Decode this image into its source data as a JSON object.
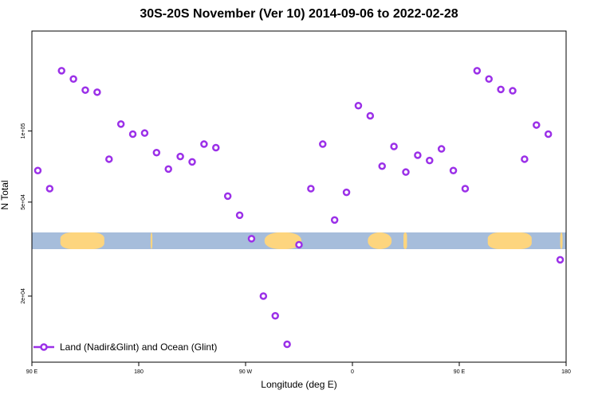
{
  "chart_data": {
    "type": "scatter",
    "title": "30S-20S November (Ver 10)   2014-09-06 to 2022-02-28",
    "xlabel": "Longitude (deg E)",
    "ylabel": "N Total",
    "y_scale": "log",
    "xlim": [
      90,
      540
    ],
    "ylim": [
      10500,
      265000
    ],
    "x_ticks": [
      {
        "value": 90,
        "label": "90 E"
      },
      {
        "value": 180,
        "label": "180"
      },
      {
        "value": 270,
        "label": "90 W"
      },
      {
        "value": 360,
        "label": "0"
      },
      {
        "value": 450,
        "label": "90 E"
      },
      {
        "value": 540,
        "label": "180"
      }
    ],
    "y_ticks": [
      {
        "value": 20000,
        "label": "2e+04"
      },
      {
        "value": 50000,
        "label": "5e+04"
      },
      {
        "value": 100000,
        "label": "1e+05"
      }
    ],
    "map_strip": {
      "ocean_color": "#a6bddb",
      "land_color": "#fdd57e"
    },
    "series": [
      {
        "name": "Land (Nadir&Glint) and Ocean (Glint)",
        "color": "#9b30e8",
        "marker": "open-circle",
        "x": [
          95,
          105,
          115,
          125,
          135,
          145,
          155,
          165,
          175,
          185,
          195,
          205,
          215,
          225,
          235,
          245,
          255,
          265,
          275,
          285,
          295,
          305,
          315,
          325,
          335,
          345,
          355,
          365,
          375,
          385,
          395,
          405,
          415,
          425,
          435,
          445,
          455,
          465,
          475,
          485,
          495,
          505,
          515,
          525,
          535
        ],
        "y": [
          68000,
          57000,
          180000,
          166000,
          149000,
          146000,
          76000,
          107000,
          97000,
          98000,
          81000,
          69000,
          78000,
          74000,
          88000,
          85000,
          53000,
          44000,
          35000,
          20000,
          16500,
          12500,
          33000,
          57000,
          88000,
          42000,
          55000,
          128000,
          116000,
          71000,
          86000,
          67000,
          79000,
          75000,
          84000,
          68000,
          57000,
          180000,
          166000,
          150000,
          148000,
          76000,
          106000,
          97000,
          28500
        ]
      }
    ],
    "legend_position": "bottom-left",
    "grid": false
  }
}
